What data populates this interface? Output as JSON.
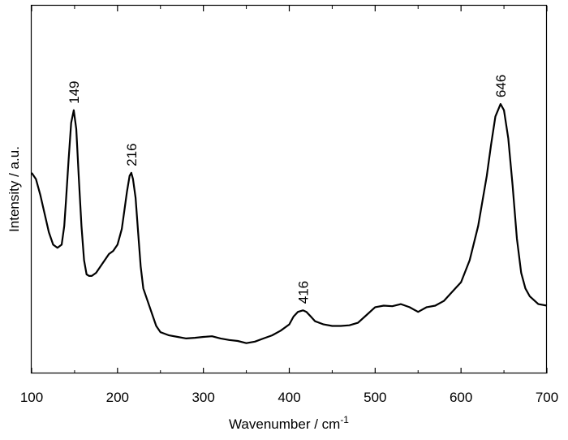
{
  "chart_data": {
    "type": "line",
    "title": "",
    "xlabel": "Wavenumber / cm",
    "xlabel_superscript": "-1",
    "ylabel": "Intensity / a.u.",
    "xlim": [
      100,
      700
    ],
    "ylim": [
      0,
      1
    ],
    "grid": false,
    "legend": "none",
    "x_ticks": [
      100,
      200,
      300,
      400,
      500,
      600,
      700
    ],
    "x_tick_labels": [
      "100",
      "200",
      "300",
      "400",
      "500",
      "600",
      "700"
    ],
    "y_ticks_labeled": false,
    "line_color": "#000000",
    "peak_labels": [
      {
        "x": 149,
        "text": "149"
      },
      {
        "x": 216,
        "text": "216"
      },
      {
        "x": 416,
        "text": "416"
      },
      {
        "x": 646,
        "text": "646"
      }
    ],
    "series": [
      {
        "x": [
          100,
          105,
          110,
          115,
          120,
          125,
          130,
          135,
          138,
          140,
          143,
          146,
          149,
          152,
          155,
          158,
          161,
          164,
          167,
          170,
          175,
          180,
          185,
          190,
          195,
          200,
          205,
          208,
          211,
          214,
          216,
          218,
          221,
          224,
          227,
          230,
          235,
          240,
          245,
          250,
          255,
          260,
          270,
          280,
          290,
          300,
          310,
          320,
          330,
          340,
          350,
          360,
          370,
          380,
          390,
          400,
          405,
          410,
          416,
          420,
          425,
          430,
          440,
          450,
          460,
          470,
          480,
          490,
          500,
          510,
          520,
          530,
          540,
          550,
          560,
          570,
          580,
          590,
          600,
          610,
          620,
          630,
          635,
          640,
          646,
          650,
          655,
          660,
          665,
          670,
          675,
          680,
          690,
          700
        ],
        "y": [
          0.59,
          0.57,
          0.52,
          0.46,
          0.4,
          0.36,
          0.35,
          0.36,
          0.42,
          0.5,
          0.63,
          0.75,
          0.79,
          0.73,
          0.57,
          0.42,
          0.31,
          0.265,
          0.26,
          0.26,
          0.27,
          0.29,
          0.31,
          0.33,
          0.34,
          0.36,
          0.41,
          0.47,
          0.53,
          0.58,
          0.59,
          0.57,
          0.51,
          0.4,
          0.29,
          0.22,
          0.18,
          0.14,
          0.1,
          0.08,
          0.075,
          0.07,
          0.065,
          0.06,
          0.062,
          0.065,
          0.067,
          0.06,
          0.055,
          0.052,
          0.045,
          0.05,
          0.06,
          0.07,
          0.085,
          0.105,
          0.13,
          0.145,
          0.15,
          0.145,
          0.13,
          0.115,
          0.105,
          0.1,
          0.1,
          0.102,
          0.11,
          0.135,
          0.16,
          0.165,
          0.163,
          0.17,
          0.16,
          0.145,
          0.16,
          0.165,
          0.18,
          0.21,
          0.24,
          0.31,
          0.42,
          0.58,
          0.68,
          0.77,
          0.81,
          0.79,
          0.7,
          0.55,
          0.38,
          0.27,
          0.22,
          0.195,
          0.17,
          0.165
        ]
      }
    ]
  }
}
